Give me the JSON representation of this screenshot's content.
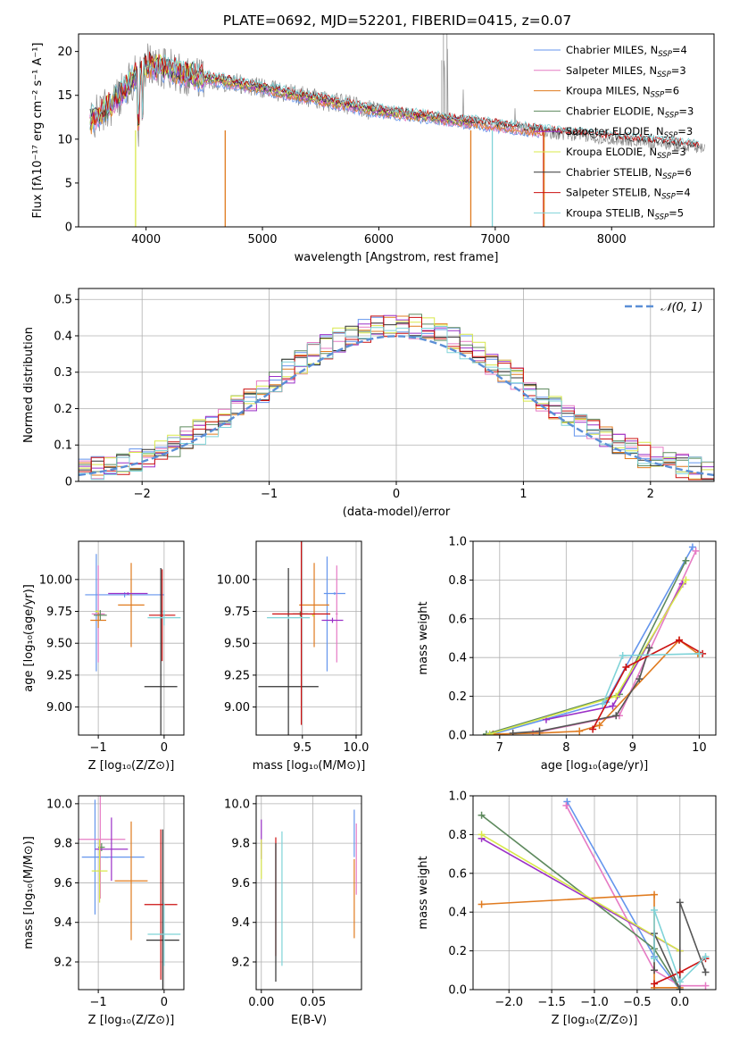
{
  "figure_title": "PLATE=0692, MJD=52201, FIBERID=0415, z=0.07",
  "chart_data": [
    {
      "id": "spectrum",
      "type": "line",
      "xlabel": "wavelength [Angstrom, rest frame]",
      "ylabel": "Flux [fλ10⁻¹⁷ erg cm⁻² s⁻¹ A⁻¹]",
      "xlim": [
        3420,
        8880
      ],
      "ylim": [
        0,
        22
      ],
      "xticks": [
        4000,
        5000,
        6000,
        7000,
        8000
      ],
      "yticks": [
        0,
        5,
        10,
        15,
        20
      ],
      "grid": false,
      "legend_position": "top-right",
      "continuum": {
        "x": [
          3520,
          3700,
          3900,
          4000,
          4100,
          4300,
          4600,
          5000,
          5500,
          6000,
          6500,
          7000,
          7400,
          8000,
          8500,
          8800
        ],
        "y": [
          12.0,
          14.0,
          17.0,
          18.5,
          18.3,
          17.5,
          16.8,
          15.8,
          14.5,
          13.2,
          12.4,
          11.6,
          10.9,
          10.1,
          9.5,
          9.0
        ]
      },
      "series": [
        {
          "name": "Chabrier MILES, N",
          "sub": "SSP",
          "suffix": "=4",
          "color": "#6495ed",
          "xmax": 7420
        },
        {
          "name": "Salpeter MILES, N",
          "sub": "SSP",
          "suffix": "=3",
          "color": "#e67bc4",
          "xmax": 7420
        },
        {
          "name": "Kroupa MILES, N",
          "sub": "SSP",
          "suffix": "=6",
          "color": "#e07b1f",
          "xmax": 7420
        },
        {
          "name": "Chabrier ELODIE, N",
          "sub": "SSP",
          "suffix": "=3",
          "color": "#5e8a5e",
          "xmax": 6800
        },
        {
          "name": "Salpeter ELODIE, N",
          "sub": "SSP",
          "suffix": "=3",
          "color": "#9b30c7",
          "xmax": 6800
        },
        {
          "name": "Kroupa ELODIE, N",
          "sub": "SSP",
          "suffix": "=3",
          "color": "#d8e84a",
          "xmax": 6800
        },
        {
          "name": "Chabrier STELIB, N",
          "sub": "SSP",
          "suffix": "=6",
          "color": "#333333",
          "xmax": 8750
        },
        {
          "name": "Salpeter STELIB, N",
          "sub": "SSP",
          "suffix": "=4",
          "color": "#cc1111",
          "xmax": 8750
        },
        {
          "name": "Kroupa STELIB, N",
          "sub": "SSP",
          "suffix": "=5",
          "color": "#7fd3d8",
          "xmax": 8750
        }
      ]
    },
    {
      "id": "residuals",
      "type": "histogram",
      "xlabel": "(data-model)/error",
      "ylabel": "Normed distribution",
      "xlim": [
        -2.5,
        2.5
      ],
      "ylim": [
        0,
        0.53
      ],
      "xticks": [
        -2,
        -1,
        0,
        1,
        2
      ],
      "yticks": [
        0.0,
        0.1,
        0.2,
        0.3,
        0.4,
        0.5
      ],
      "grid": true,
      "legend_position": "top-right",
      "reference_curve": {
        "label": "𝒩(0, 1)",
        "mean": 0,
        "sigma": 1,
        "color": "#5b8fd6"
      },
      "bin_width": 0.1,
      "hist_colors": [
        "#6495ed",
        "#e67bc4",
        "#e07b1f",
        "#5e8a5e",
        "#9b30c7",
        "#d8e84a",
        "#333333",
        "#cc1111",
        "#7fd3d8"
      ]
    },
    {
      "id": "age_vs_Z",
      "type": "errorbar",
      "xlabel": "Z [log₁₀(Z/Z⊙)]",
      "ylabel": "age  [log₁₀(age/yr)]",
      "xlim": [
        -1.3,
        0.3
      ],
      "ylim": [
        8.78,
        10.3
      ],
      "xticks": [
        -1,
        0
      ],
      "yticks": [
        9.0,
        9.25,
        9.5,
        9.75,
        10.0
      ],
      "ytick_labels": [
        "9.00",
        "9.25",
        "9.50",
        "9.75",
        "10.00"
      ],
      "grid": true,
      "points": [
        {
          "x": -1.03,
          "y": 9.74,
          "xerr": 0.0,
          "yerr": 0.46,
          "color": "#6495ed"
        },
        {
          "x": -0.6,
          "y": 9.88,
          "xerr": 0.6,
          "yerr": 0.02,
          "color": "#6495ed"
        },
        {
          "x": -1.0,
          "y": 9.73,
          "xerr": 0.1,
          "yerr": 0.38,
          "color": "#e67bc4"
        },
        {
          "x": -0.5,
          "y": 9.8,
          "xerr": 0.2,
          "yerr": 0.33,
          "color": "#e07b1f"
        },
        {
          "x": -1.0,
          "y": 9.68,
          "xerr": 0.12,
          "yerr": 0.06,
          "color": "#e07b1f"
        },
        {
          "x": -0.97,
          "y": 9.72,
          "xerr": 0.1,
          "yerr": 0.04,
          "color": "#5e8a5e"
        },
        {
          "x": -0.55,
          "y": 9.89,
          "xerr": 0.3,
          "yerr": 0.01,
          "color": "#9b30c7"
        },
        {
          "x": -1.02,
          "y": 9.75,
          "xerr": 0.03,
          "yerr": 0.01,
          "color": "#d8e84a"
        },
        {
          "x": -0.05,
          "y": 9.16,
          "xerr": 0.25,
          "yerr": 0.93,
          "color": "#333333"
        },
        {
          "x": -0.03,
          "y": 9.72,
          "xerr": 0.2,
          "yerr": 0.36,
          "color": "#cc1111"
        },
        {
          "x": 0.0,
          "y": 9.7,
          "xerr": 0.25,
          "yerr": 0.06,
          "color": "#7fd3d8"
        }
      ]
    },
    {
      "id": "age_vs_mass",
      "type": "errorbar",
      "xlabel": "mass [log₁₀(M/M⊙)]",
      "ylabel": "",
      "xlim": [
        9.07,
        10.05
      ],
      "ylim": [
        8.78,
        10.3
      ],
      "xticks": [
        9.5,
        10.0
      ],
      "xtick_labels": [
        "9.5",
        "10.0"
      ],
      "yticks": [
        9.0,
        9.25,
        9.5,
        9.75,
        10.0
      ],
      "ytick_labels": [
        "9.00",
        "9.25",
        "9.50",
        "9.75",
        "10.00"
      ],
      "grid": true,
      "points": [
        {
          "x": 9.73,
          "y": 9.73,
          "xerr": 0.0,
          "yerr": 0.45,
          "color": "#6495ed"
        },
        {
          "x": 9.8,
          "y": 9.89,
          "xerr": 0.1,
          "yerr": 0.01,
          "color": "#6495ed"
        },
        {
          "x": 9.82,
          "y": 9.73,
          "xerr": 0.01,
          "yerr": 0.38,
          "color": "#e67bc4"
        },
        {
          "x": 9.61,
          "y": 9.8,
          "xerr": 0.14,
          "yerr": 0.33,
          "color": "#e07b1f"
        },
        {
          "x": 9.48,
          "y": 9.73,
          "xerr": 0.07,
          "yerr": 0.02,
          "color": "#5e8a5e"
        },
        {
          "x": 9.78,
          "y": 9.68,
          "xerr": 0.1,
          "yerr": 0.02,
          "color": "#9b30c7"
        },
        {
          "x": 9.6,
          "y": 9.72,
          "xerr": 0.01,
          "yerr": 0.01,
          "color": "#d8e84a"
        },
        {
          "x": 9.37,
          "y": 9.16,
          "xerr": 0.28,
          "yerr": 0.93,
          "color": "#333333"
        },
        {
          "x": 9.49,
          "y": 9.73,
          "xerr": 0.27,
          "yerr": 0.87,
          "color": "#cc1111"
        },
        {
          "x": 9.37,
          "y": 9.7,
          "xerr": 0.2,
          "yerr": 0.01,
          "color": "#7fd3d8"
        }
      ]
    },
    {
      "id": "weight_vs_age",
      "type": "line",
      "xlabel": "age  [log₁₀(age/yr)]",
      "ylabel": "mass weight",
      "xlim": [
        6.6,
        10.25
      ],
      "ylim": [
        0,
        1.0
      ],
      "xticks": [
        7,
        8,
        9,
        10
      ],
      "yticks": [
        0.0,
        0.2,
        0.4,
        0.6,
        0.8,
        1.0
      ],
      "ytick_labels": [
        "0.0",
        "0.2",
        "0.4",
        "0.6",
        "0.8",
        "1.0"
      ],
      "grid": true,
      "series": [
        {
          "color": "#6495ed",
          "x": [
            6.9,
            8.6,
            9.9
          ],
          "y": [
            0.005,
            0.17,
            0.97
          ]
        },
        {
          "color": "#e67bc4",
          "x": [
            7.5,
            8.8,
            9.95
          ],
          "y": [
            0.01,
            0.1,
            0.95
          ]
        },
        {
          "color": "#e07b1f",
          "x": [
            6.9,
            7.6,
            8.2,
            8.5,
            9.7,
            9.98
          ],
          "y": [
            0.005,
            0.01,
            0.02,
            0.05,
            0.49,
            0.42
          ]
        },
        {
          "color": "#5e8a5e",
          "x": [
            6.8,
            8.8,
            9.8
          ],
          "y": [
            0.005,
            0.21,
            0.9
          ]
        },
        {
          "color": "#9b30c7",
          "x": [
            7.7,
            8.7,
            9.75
          ],
          "y": [
            0.08,
            0.15,
            0.78
          ]
        },
        {
          "color": "#d8e84a",
          "x": [
            6.85,
            8.75,
            9.8
          ],
          "y": [
            0.005,
            0.2,
            0.8
          ]
        },
        {
          "color": "#555555",
          "x": [
            7.2,
            7.6,
            8.75,
            9.1,
            9.25
          ],
          "y": [
            0.01,
            0.02,
            0.1,
            0.29,
            0.45
          ]
        },
        {
          "color": "#cc1111",
          "x": [
            8.4,
            8.9,
            9.7,
            10.05
          ],
          "y": [
            0.03,
            0.35,
            0.49,
            0.42
          ]
        },
        {
          "color": "#7fd3d8",
          "x": [
            8.55,
            8.85,
            10.0
          ],
          "y": [
            0.16,
            0.41,
            0.42
          ]
        }
      ]
    },
    {
      "id": "mass_vs_Z",
      "type": "errorbar",
      "xlabel": "Z [log₁₀(Z/Z⊙)]",
      "ylabel": "mass [log₁₀(M/M⊙)]",
      "xlim": [
        -1.3,
        0.3
      ],
      "ylim": [
        9.06,
        10.04
      ],
      "xticks": [
        -1,
        0
      ],
      "yticks": [
        9.2,
        9.4,
        9.6,
        9.8,
        10.0
      ],
      "ytick_labels": [
        "9.2",
        "9.4",
        "9.6",
        "9.8",
        "10.0"
      ],
      "grid": true,
      "points": [
        {
          "x": -1.05,
          "y": 9.73,
          "xerr": 0.2,
          "yerr": 0.29,
          "color": "#6495ed"
        },
        {
          "x": -0.6,
          "y": 9.73,
          "xerr": 0.3,
          "yerr": 0.0,
          "color": "#6495ed"
        },
        {
          "x": -0.97,
          "y": 9.82,
          "xerr": 0.38,
          "yerr": 0.3,
          "color": "#e67bc4"
        },
        {
          "x": -0.5,
          "y": 9.61,
          "xerr": 0.25,
          "yerr": 0.3,
          "color": "#e07b1f"
        },
        {
          "x": -0.95,
          "y": 9.78,
          "xerr": 0.05,
          "yerr": 0.02,
          "color": "#5e8a5e"
        },
        {
          "x": -0.8,
          "y": 9.77,
          "xerr": 0.25,
          "yerr": 0.16,
          "color": "#9b30c7"
        },
        {
          "x": -0.98,
          "y": 9.66,
          "xerr": 0.12,
          "yerr": 0.16,
          "color": "#d8e84a"
        },
        {
          "x": -0.02,
          "y": 9.31,
          "xerr": 0.25,
          "yerr": 0.56,
          "color": "#333333"
        },
        {
          "x": -0.05,
          "y": 9.49,
          "xerr": 0.25,
          "yerr": 0.38,
          "color": "#cc1111"
        },
        {
          "x": 0.0,
          "y": 9.34,
          "xerr": 0.25,
          "yerr": 0.16,
          "color": "#7fd3d8"
        }
      ]
    },
    {
      "id": "mass_vs_EBV",
      "type": "errorbar",
      "xlabel": "E(B-V)",
      "ylabel": "",
      "xlim": [
        -0.005,
        0.097
      ],
      "ylim": [
        9.06,
        10.04
      ],
      "xticks": [
        0.0,
        0.05
      ],
      "xtick_labels": [
        "0.00",
        "0.05"
      ],
      "yticks": [
        9.2,
        9.4,
        9.6,
        9.8,
        10.0
      ],
      "ytick_labels": [
        "9.2",
        "9.4",
        "9.6",
        "9.8",
        "10.0"
      ],
      "grid": true,
      "points": [
        {
          "x": 0.0,
          "y": 9.82,
          "xerr": 0.0,
          "yerr": 0.1,
          "color": "#9b30c7"
        },
        {
          "x": 0.0,
          "y": 9.72,
          "xerr": 0.0,
          "yerr": 0.1,
          "color": "#d8e84a"
        },
        {
          "x": 0.014,
          "y": 9.53,
          "xerr": 0.0,
          "yerr": 0.3,
          "color": "#cc1111"
        },
        {
          "x": 0.014,
          "y": 9.45,
          "xerr": 0.0,
          "yerr": 0.35,
          "color": "#333333"
        },
        {
          "x": 0.02,
          "y": 9.52,
          "xerr": 0.0,
          "yerr": 0.34,
          "color": "#7fd3d8"
        },
        {
          "x": 0.09,
          "y": 9.85,
          "xerr": 0.0,
          "yerr": 0.12,
          "color": "#6495ed"
        },
        {
          "x": 0.092,
          "y": 9.72,
          "xerr": 0.0,
          "yerr": 0.18,
          "color": "#e67bc4"
        },
        {
          "x": 0.09,
          "y": 9.52,
          "xerr": 0.0,
          "yerr": 0.2,
          "color": "#e07b1f"
        }
      ]
    },
    {
      "id": "weight_vs_Z",
      "type": "line",
      "xlabel": "Z [log₁₀(Z/Z⊙)]",
      "ylabel": "mass weight",
      "xlim": [
        -2.42,
        0.42
      ],
      "ylim": [
        0,
        1.0
      ],
      "xticks": [
        -2.0,
        -1.5,
        -1.0,
        -0.5,
        0.0
      ],
      "xtick_labels": [
        "−2.0",
        "−1.5",
        "−1.0",
        "−0.5",
        "0.0"
      ],
      "yticks": [
        0.0,
        0.2,
        0.4,
        0.6,
        0.8,
        1.0
      ],
      "ytick_labels": [
        "0.0",
        "0.2",
        "0.4",
        "0.6",
        "0.8",
        "1.0"
      ],
      "grid": true,
      "series": [
        {
          "color": "#6495ed",
          "x": [
            -1.32,
            -0.3,
            0.0
          ],
          "y": [
            0.97,
            0.17,
            0.0
          ]
        },
        {
          "color": "#e67bc4",
          "x": [
            -1.33,
            -0.3,
            0.0,
            0.3
          ],
          "y": [
            0.95,
            0.1,
            0.02,
            0.02
          ]
        },
        {
          "color": "#e07b1f",
          "x": [
            -2.32,
            -0.3,
            -0.3,
            0.0
          ],
          "y": [
            0.44,
            0.49,
            0.01,
            0.01
          ]
        },
        {
          "color": "#5e8a5e",
          "x": [
            -2.32,
            -0.3,
            0.0
          ],
          "y": [
            0.9,
            0.21,
            0.0
          ]
        },
        {
          "color": "#9b30c7",
          "x": [
            -2.32,
            0.0
          ],
          "y": [
            0.78,
            0.2
          ]
        },
        {
          "color": "#d8e84a",
          "x": [
            -2.32,
            0.0
          ],
          "y": [
            0.8,
            0.2
          ]
        },
        {
          "color": "#555555",
          "x": [
            -0.3,
            -0.3,
            0.0,
            0.0,
            0.3
          ],
          "y": [
            0.1,
            0.29,
            0.0,
            0.45,
            0.09
          ]
        },
        {
          "color": "#cc1111",
          "x": [
            -0.3,
            0.0,
            0.3
          ],
          "y": [
            0.03,
            0.09,
            0.16
          ]
        },
        {
          "color": "#7fd3d8",
          "x": [
            -0.3,
            -0.3,
            0.0,
            0.3
          ],
          "y": [
            0.16,
            0.41,
            0.04,
            0.17
          ]
        }
      ]
    }
  ]
}
